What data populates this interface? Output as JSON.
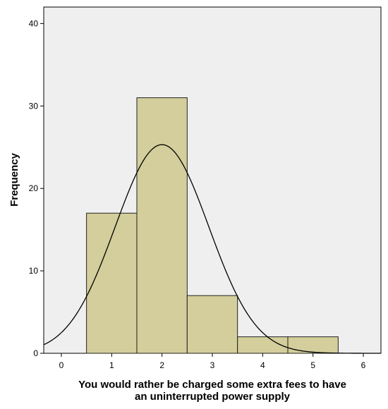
{
  "chart_data": {
    "type": "bar",
    "subtype": "histogram",
    "bins": [
      {
        "from": 0.5,
        "to": 1.5,
        "value": 17
      },
      {
        "from": 1.5,
        "to": 2.5,
        "value": 31
      },
      {
        "from": 2.5,
        "to": 3.5,
        "value": 7
      },
      {
        "from": 3.5,
        "to": 4.5,
        "value": 2
      },
      {
        "from": 4.5,
        "to": 5.5,
        "value": 2
      }
    ],
    "normal_curve": {
      "mean": 2.0,
      "std_dev": 0.93,
      "n": 59
    },
    "xlabel_lines": [
      "You would rather be charged some extra fees to have",
      "an uninterrupted power supply"
    ],
    "ylabel": "Frequency",
    "xlim": [
      -0.35,
      6.35
    ],
    "ylim": [
      0,
      42
    ],
    "xticks": [
      "0",
      "1",
      "2",
      "3",
      "4",
      "5",
      "6"
    ],
    "yticks": [
      "0",
      "10",
      "20",
      "30",
      "40"
    ],
    "grid": false,
    "colors": {
      "bar_fill": "#d3ce9b",
      "bar_stroke": "#222222",
      "plot_bg": "#efefef",
      "curve": "#000000"
    }
  }
}
